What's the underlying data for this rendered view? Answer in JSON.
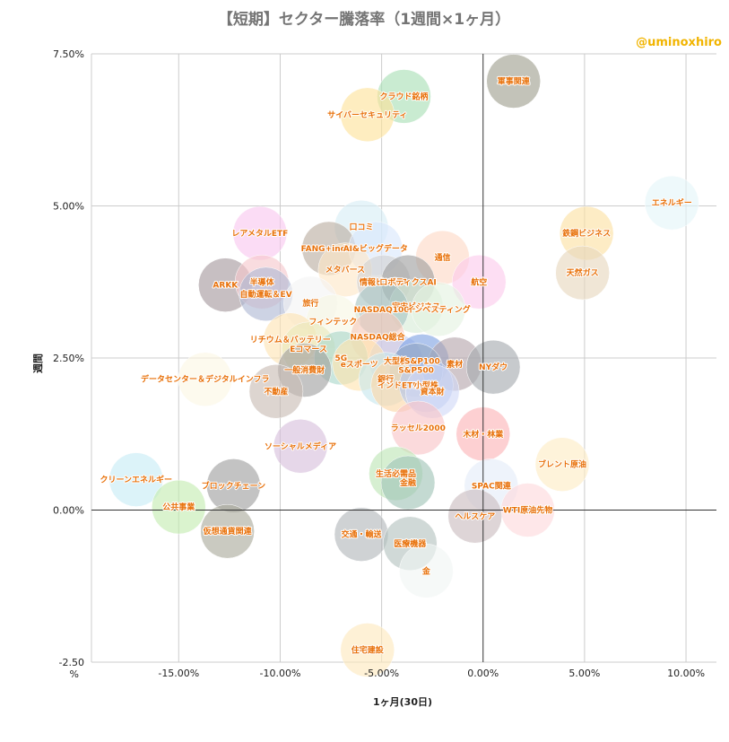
{
  "chart_data": {
    "type": "bubble-scatter",
    "title": "【短期】セクター騰落率（1週間×1ヶ月）",
    "credit": "@uminoxhiro",
    "xlabel": "1ヶ月(30日)",
    "ylabel": "週間",
    "xlim": [
      -19.3,
      11.5
    ],
    "ylim": [
      -2.5,
      7.5
    ],
    "x_ticks": [
      {
        "value": -15,
        "label": "-15.00%"
      },
      {
        "value": -10,
        "label": "-10.00%"
      },
      {
        "value": -5,
        "label": "-5.00%"
      },
      {
        "value": 0,
        "label": "0.00%"
      },
      {
        "value": 5,
        "label": "5.00%"
      },
      {
        "value": 10,
        "label": "10.00%"
      }
    ],
    "y_ticks": [
      {
        "value": 7.5,
        "label": "7.50%"
      },
      {
        "value": 5,
        "label": "5.00%"
      },
      {
        "value": 2.5,
        "label": "2.50%"
      },
      {
        "value": 0,
        "label": "0.00%"
      },
      {
        "value": -2.5,
        "label": "-2.50\n%"
      }
    ],
    "grid": true,
    "points": [
      {
        "label": "軍事関連",
        "x": 1.5,
        "y": 7.05,
        "color": "#9e9e8e"
      },
      {
        "label": "クラウド銘柄",
        "x": -3.9,
        "y": 6.8,
        "color": "#a8dfb5"
      },
      {
        "label": "サイバーセキュリティ",
        "x": -5.7,
        "y": 6.5,
        "color": "#fde29a"
      },
      {
        "label": "エネルギー",
        "x": 9.3,
        "y": 5.05,
        "color": "#e4f5f8"
      },
      {
        "label": "口コミ",
        "x": -6.0,
        "y": 4.65,
        "color": "#d6eef5"
      },
      {
        "label": "FANG+index",
        "x": -7.6,
        "y": 4.3,
        "color": "#b9ad9f"
      },
      {
        "label": "AI&ビッグデータ",
        "x": -5.3,
        "y": 4.3,
        "color": "#d9e6fb"
      },
      {
        "label": "レアメタルETF",
        "x": -11.0,
        "y": 4.55,
        "color": "#f8c6ef"
      },
      {
        "label": "鉄鋼ビジネス",
        "x": 5.1,
        "y": 4.55,
        "color": "#fbe1a1"
      },
      {
        "label": "天然ガス",
        "x": 4.9,
        "y": 3.9,
        "color": "#e6d7bd"
      },
      {
        "label": "通信",
        "x": -2.0,
        "y": 4.15,
        "color": "#fdd8c5"
      },
      {
        "label": "メタバース",
        "x": -6.8,
        "y": 3.95,
        "color": "#fde7c6"
      },
      {
        "label": "航空",
        "x": -0.2,
        "y": 3.75,
        "color": "#fbc9ec"
      },
      {
        "label": "ARKK",
        "x": -12.7,
        "y": 3.7,
        "color": "#a4989c"
      },
      {
        "label": "半導体",
        "x": -10.9,
        "y": 3.75,
        "color": "#f6c6cc"
      },
      {
        "label": "自動運転＆EV",
        "x": -10.7,
        "y": 3.55,
        "color": "#aeb8d3"
      },
      {
        "label": "情報ビジネス",
        "x": -4.9,
        "y": 3.75,
        "color": "#d2d2d2"
      },
      {
        "label": "ロボティクスAI",
        "x": -3.7,
        "y": 3.75,
        "color": "#9e9e9e"
      },
      {
        "label": "旅行",
        "x": -8.5,
        "y": 3.4,
        "color": "#f3f3f3"
      },
      {
        "label": "宇宙ビジネス",
        "x": -3.3,
        "y": 3.35,
        "color": "#d7ecd6"
      },
      {
        "label": "NASDAQ100",
        "x": -5.0,
        "y": 3.3,
        "color": "#a7c3c1"
      },
      {
        "label": "インベスティング",
        "x": -2.2,
        "y": 3.3,
        "color": "#e3f2e1"
      },
      {
        "label": "フィンテック",
        "x": -7.4,
        "y": 3.1,
        "color": "#f7f7e3"
      },
      {
        "label": "リチウム＆バッテリー",
        "x": -9.5,
        "y": 2.8,
        "color": "#fde4b3"
      },
      {
        "label": "NASDAQ総合",
        "x": -5.2,
        "y": 2.85,
        "color": "#f6c8b8"
      },
      {
        "label": "Eコマース",
        "x": -8.6,
        "y": 2.65,
        "color": "#e8e8bc"
      },
      {
        "label": "5G",
        "x": -7.0,
        "y": 2.5,
        "color": "#a9d6ca"
      },
      {
        "label": "大型株",
        "x": -4.3,
        "y": 2.45,
        "color": "#c2cdf5"
      },
      {
        "label": "S&P100",
        "x": -3.0,
        "y": 2.45,
        "color": "#7ea2e2"
      },
      {
        "label": "eスポーツ",
        "x": -6.1,
        "y": 2.4,
        "color": "#ffe4ae"
      },
      {
        "label": "素材",
        "x": -1.4,
        "y": 2.4,
        "color": "#b4a5ab"
      },
      {
        "label": "NYダウ",
        "x": 0.5,
        "y": 2.35,
        "color": "#a4aaae"
      },
      {
        "label": "S&P500",
        "x": -3.3,
        "y": 2.3,
        "color": "#95a8c4"
      },
      {
        "label": "一般消費財",
        "x": -8.8,
        "y": 2.3,
        "color": "#9f9f9f"
      },
      {
        "label": "データセンター＆デジタルインフラ",
        "x": -13.7,
        "y": 2.15,
        "color": "#fbf7e4"
      },
      {
        "label": "銀行",
        "x": -4.8,
        "y": 2.15,
        "color": "#c6e6ee"
      },
      {
        "label": "インドETF",
        "x": -4.2,
        "y": 2.05,
        "color": "#fbd7a6"
      },
      {
        "label": "小型株",
        "x": -2.8,
        "y": 2.05,
        "color": "#b7c8ee"
      },
      {
        "label": "資本財",
        "x": -2.5,
        "y": 1.95,
        "color": "#d1d8f7"
      },
      {
        "label": "不動産",
        "x": -10.2,
        "y": 1.95,
        "color": "#c8bcb3"
      },
      {
        "label": "ラッセル2000",
        "x": -3.2,
        "y": 1.35,
        "color": "#f8c4c6"
      },
      {
        "label": "木材・林業",
        "x": 0.0,
        "y": 1.25,
        "color": "#fbb3b7"
      },
      {
        "label": "ソーシャルメディア",
        "x": -9.0,
        "y": 1.05,
        "color": "#d7bfdc"
      },
      {
        "label": "ブレント原油",
        "x": 3.9,
        "y": 0.75,
        "color": "#fdecc4"
      },
      {
        "label": "生活必需品",
        "x": -4.3,
        "y": 0.6,
        "color": "#bde5b4"
      },
      {
        "label": "金融",
        "x": -3.7,
        "y": 0.45,
        "color": "#9fc4b6"
      },
      {
        "label": "クリーンエネルギー",
        "x": -17.1,
        "y": 0.5,
        "color": "#c7ebf5"
      },
      {
        "label": "ブロックチェーン",
        "x": -12.3,
        "y": 0.4,
        "color": "#9e9e9e"
      },
      {
        "label": "SPAC関連",
        "x": 0.4,
        "y": 0.4,
        "color": "#e3ecf9"
      },
      {
        "label": "公共事業",
        "x": -15.0,
        "y": 0.05,
        "color": "#c4ecb0"
      },
      {
        "label": "WTI原油先物",
        "x": 2.2,
        "y": 0.0,
        "color": "#fdd9dc"
      },
      {
        "label": "ヘルスケア",
        "x": -0.4,
        "y": -0.1,
        "color": "#c9bcbf"
      },
      {
        "label": "仮想通貨関連",
        "x": -12.6,
        "y": -0.35,
        "color": "#a9a99b"
      },
      {
        "label": "交通・輸送",
        "x": -6.0,
        "y": -0.4,
        "color": "#b1b6ba"
      },
      {
        "label": "医療機器",
        "x": -3.6,
        "y": -0.55,
        "color": "#b3c2bf"
      },
      {
        "label": "金",
        "x": -2.8,
        "y": -1.0,
        "color": "#f1f5f3"
      },
      {
        "label": "住宅建設",
        "x": -5.7,
        "y": -2.3,
        "color": "#fde9bd"
      }
    ]
  }
}
